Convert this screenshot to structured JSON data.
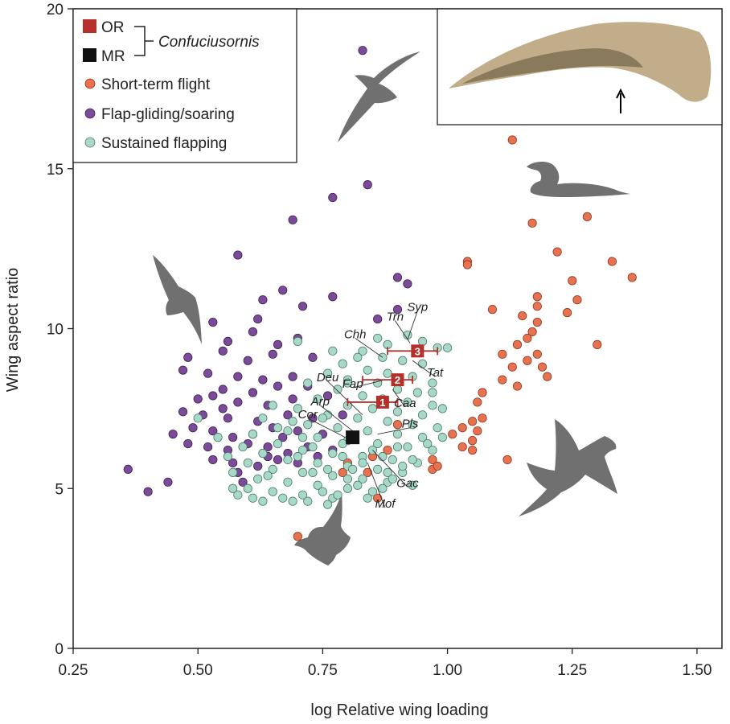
{
  "chart_data": {
    "type": "scatter",
    "xlabel": "log Relative wing loading",
    "ylabel": "Wing aspect ratio",
    "xlim": [
      0.25,
      1.55
    ],
    "ylim": [
      0,
      20
    ],
    "xticks": [
      0.25,
      0.5,
      0.75,
      1.0,
      1.25,
      1.5
    ],
    "xtick_labels": [
      "0.25",
      "0.50",
      "0.75",
      "1.00",
      "1.25",
      "1.50"
    ],
    "yticks": [
      0,
      5,
      10,
      15,
      20
    ],
    "ytick_labels": [
      "0",
      "5",
      "10",
      "15",
      "20"
    ],
    "legend": {
      "position": "top-left",
      "group_label": "Confuciusornis",
      "items": [
        {
          "label": "OR",
          "marker": "square",
          "color": "#b5302a"
        },
        {
          "label": "MR",
          "marker": "square",
          "color": "#111111"
        },
        {
          "label": "Short-term flight",
          "marker": "circle",
          "color": "#e8714f"
        },
        {
          "label": "Flap-gliding/soaring",
          "marker": "circle",
          "color": "#7b4a98"
        },
        {
          "label": "Sustained flapping",
          "marker": "circle",
          "color": "#a8d8c8"
        }
      ]
    },
    "series": [
      {
        "name": "Short-term flight",
        "color": "#e8714f",
        "points": [
          [
            1.13,
            15.9
          ],
          [
            1.17,
            13.3
          ],
          [
            1.28,
            13.5
          ],
          [
            1.22,
            12.4
          ],
          [
            1.04,
            12.1
          ],
          [
            1.04,
            12.0
          ],
          [
            1.33,
            12.1
          ],
          [
            1.37,
            11.6
          ],
          [
            1.25,
            11.5
          ],
          [
            1.18,
            11.0
          ],
          [
            1.26,
            10.9
          ],
          [
            1.18,
            10.7
          ],
          [
            1.09,
            10.6
          ],
          [
            1.24,
            10.5
          ],
          [
            1.18,
            10.2
          ],
          [
            1.15,
            10.4
          ],
          [
            1.17,
            9.9
          ],
          [
            1.16,
            9.7
          ],
          [
            1.3,
            9.5
          ],
          [
            1.14,
            9.5
          ],
          [
            1.11,
            9.2
          ],
          [
            1.18,
            9.2
          ],
          [
            1.16,
            9.0
          ],
          [
            1.19,
            8.8
          ],
          [
            1.13,
            8.8
          ],
          [
            1.2,
            8.5
          ],
          [
            1.11,
            8.4
          ],
          [
            1.14,
            8.2
          ],
          [
            1.07,
            8.0
          ],
          [
            1.06,
            7.7
          ],
          [
            1.07,
            7.2
          ],
          [
            1.05,
            7.1
          ],
          [
            1.03,
            6.9
          ],
          [
            1.06,
            6.8
          ],
          [
            1.01,
            6.7
          ],
          [
            1.05,
            6.5
          ],
          [
            1.03,
            6.3
          ],
          [
            1.05,
            6.2
          ],
          [
            0.97,
            5.9
          ],
          [
            1.12,
            5.9
          ],
          [
            0.97,
            5.6
          ],
          [
            0.85,
            6.0
          ],
          [
            0.84,
            5.5
          ],
          [
            0.86,
            4.7
          ],
          [
            0.8,
            5.8
          ],
          [
            0.79,
            5.5
          ],
          [
            0.7,
            3.5
          ],
          [
            0.98,
            5.7
          ],
          [
            0.88,
            6.2
          ],
          [
            0.9,
            7.0
          ]
        ]
      },
      {
        "name": "Flap-gliding/soaring",
        "color": "#7b4a98",
        "points": [
          [
            0.83,
            18.7
          ],
          [
            0.84,
            14.5
          ],
          [
            0.77,
            14.1
          ],
          [
            0.69,
            13.4
          ],
          [
            0.58,
            12.3
          ],
          [
            0.9,
            11.6
          ],
          [
            0.92,
            11.4
          ],
          [
            0.77,
            11.0
          ],
          [
            0.67,
            11.2
          ],
          [
            0.63,
            10.9
          ],
          [
            0.71,
            10.7
          ],
          [
            0.9,
            10.6
          ],
          [
            0.62,
            10.3
          ],
          [
            0.53,
            10.2
          ],
          [
            0.61,
            9.9
          ],
          [
            0.56,
            9.6
          ],
          [
            0.66,
            9.5
          ],
          [
            0.7,
            9.7
          ],
          [
            0.48,
            9.1
          ],
          [
            0.55,
            9.3
          ],
          [
            0.6,
            9.0
          ],
          [
            0.65,
            9.2
          ],
          [
            0.73,
            9.1
          ],
          [
            0.47,
            8.7
          ],
          [
            0.52,
            8.6
          ],
          [
            0.58,
            8.5
          ],
          [
            0.63,
            8.4
          ],
          [
            0.69,
            8.5
          ],
          [
            0.55,
            8.1
          ],
          [
            0.61,
            8.0
          ],
          [
            0.66,
            8.2
          ],
          [
            0.72,
            8.2
          ],
          [
            0.5,
            7.8
          ],
          [
            0.53,
            7.9
          ],
          [
            0.58,
            7.7
          ],
          [
            0.64,
            7.6
          ],
          [
            0.69,
            7.8
          ],
          [
            0.76,
            7.9
          ],
          [
            0.47,
            7.4
          ],
          [
            0.51,
            7.3
          ],
          [
            0.56,
            7.2
          ],
          [
            0.62,
            7.1
          ],
          [
            0.68,
            7.3
          ],
          [
            0.73,
            7.2
          ],
          [
            0.79,
            7.3
          ],
          [
            0.45,
            6.7
          ],
          [
            0.49,
            6.9
          ],
          [
            0.53,
            6.8
          ],
          [
            0.57,
            6.6
          ],
          [
            0.61,
            6.7
          ],
          [
            0.65,
            6.9
          ],
          [
            0.7,
            6.8
          ],
          [
            0.75,
            6.7
          ],
          [
            0.48,
            6.4
          ],
          [
            0.52,
            6.3
          ],
          [
            0.56,
            6.2
          ],
          [
            0.6,
            6.4
          ],
          [
            0.64,
            6.3
          ],
          [
            0.68,
            6.1
          ],
          [
            0.72,
            6.3
          ],
          [
            0.77,
            6.2
          ],
          [
            0.53,
            5.9
          ],
          [
            0.57,
            5.8
          ],
          [
            0.62,
            5.7
          ],
          [
            0.66,
            5.9
          ],
          [
            0.7,
            5.8
          ],
          [
            0.58,
            5.5
          ],
          [
            0.36,
            5.6
          ],
          [
            0.4,
            4.9
          ],
          [
            0.44,
            5.2
          ],
          [
            0.86,
            10.3
          ],
          [
            0.64,
            6.0
          ],
          [
            0.67,
            6.6
          ],
          [
            0.55,
            7.5
          ],
          [
            0.59,
            5.2
          ],
          [
            0.74,
            6.0
          ]
        ]
      },
      {
        "name": "Sustained flapping",
        "color": "#a8d8c8",
        "points": [
          [
            0.92,
            9.8
          ],
          [
            0.95,
            9.6
          ],
          [
            0.88,
            9.5
          ],
          [
            0.98,
            9.4
          ],
          [
            0.83,
            9.3
          ],
          [
            0.87,
            9.1
          ],
          [
            0.91,
            9.0
          ],
          [
            0.95,
            8.9
          ],
          [
            0.79,
            8.9
          ],
          [
            0.84,
            8.7
          ],
          [
            0.88,
            8.6
          ],
          [
            0.93,
            8.5
          ],
          [
            0.97,
            8.3
          ],
          [
            0.76,
            8.6
          ],
          [
            0.8,
            8.4
          ],
          [
            0.86,
            8.3
          ],
          [
            0.9,
            8.1
          ],
          [
            0.94,
            8.0
          ],
          [
            0.72,
            8.3
          ],
          [
            0.78,
            8.1
          ],
          [
            0.83,
            7.9
          ],
          [
            0.87,
            7.8
          ],
          [
            0.92,
            7.7
          ],
          [
            0.97,
            7.6
          ],
          [
            0.74,
            7.8
          ],
          [
            0.8,
            7.6
          ],
          [
            0.85,
            7.5
          ],
          [
            0.9,
            7.4
          ],
          [
            0.95,
            7.3
          ],
          [
            0.7,
            7.5
          ],
          [
            0.76,
            7.3
          ],
          [
            0.82,
            7.2
          ],
          [
            0.88,
            7.1
          ],
          [
            0.93,
            7.0
          ],
          [
            0.98,
            6.9
          ],
          [
            0.72,
            7.0
          ],
          [
            0.78,
            6.9
          ],
          [
            0.84,
            6.8
          ],
          [
            0.9,
            6.7
          ],
          [
            0.95,
            6.6
          ],
          [
            0.68,
            6.8
          ],
          [
            0.74,
            6.6
          ],
          [
            0.8,
            6.5
          ],
          [
            0.86,
            6.4
          ],
          [
            0.92,
            6.3
          ],
          [
            0.97,
            6.2
          ],
          [
            0.66,
            6.4
          ],
          [
            0.71,
            6.2
          ],
          [
            0.77,
            6.1
          ],
          [
            0.83,
            6.0
          ],
          [
            0.89,
            5.9
          ],
          [
            0.94,
            5.8
          ],
          [
            0.63,
            6.1
          ],
          [
            0.68,
            5.9
          ],
          [
            0.74,
            5.8
          ],
          [
            0.8,
            5.7
          ],
          [
            0.86,
            5.6
          ],
          [
            0.91,
            5.5
          ],
          [
            0.6,
            5.8
          ],
          [
            0.65,
            5.6
          ],
          [
            0.71,
            5.5
          ],
          [
            0.77,
            5.4
          ],
          [
            0.83,
            5.3
          ],
          [
            0.88,
            5.2
          ],
          [
            0.57,
            5.5
          ],
          [
            0.62,
            5.3
          ],
          [
            0.68,
            5.2
          ],
          [
            0.74,
            5.1
          ],
          [
            0.8,
            5.0
          ],
          [
            0.85,
            4.9
          ],
          [
            0.6,
            5.0
          ],
          [
            0.65,
            4.9
          ],
          [
            0.71,
            4.8
          ],
          [
            0.77,
            4.7
          ],
          [
            0.58,
            4.8
          ],
          [
            0.63,
            4.6
          ],
          [
            0.69,
            4.6
          ],
          [
            0.75,
            4.9
          ],
          [
            0.82,
            5.1
          ],
          [
            0.88,
            5.5
          ],
          [
            0.93,
            5.9
          ],
          [
            0.99,
            7.5
          ],
          [
            1.0,
            9.4
          ],
          [
            0.97,
            8.0
          ],
          [
            0.9,
            6.3
          ],
          [
            0.81,
            5.6
          ],
          [
            0.79,
            6.0
          ],
          [
            0.85,
            6.2
          ],
          [
            0.73,
            6.3
          ],
          [
            0.66,
            6.9
          ],
          [
            0.7,
            6.0
          ],
          [
            0.76,
            5.6
          ],
          [
            0.64,
            5.4
          ],
          [
            0.61,
            6.7
          ],
          [
            0.59,
            6.3
          ],
          [
            0.56,
            6.0
          ],
          [
            0.5,
            7.2
          ],
          [
            0.54,
            6.6
          ],
          [
            0.57,
            5.0
          ],
          [
            0.61,
            4.7
          ],
          [
            0.67,
            4.7
          ],
          [
            0.72,
            4.6
          ],
          [
            0.78,
            4.8
          ],
          [
            0.84,
            4.7
          ],
          [
            0.87,
            5.0
          ],
          [
            0.89,
            5.3
          ],
          [
            0.93,
            5.1
          ],
          [
            0.96,
            6.4
          ],
          [
            0.99,
            6.6
          ],
          [
            0.82,
            9.1
          ],
          [
            0.86,
            9.7
          ],
          [
            0.8,
            8.3
          ],
          [
            0.75,
            7.2
          ],
          [
            0.71,
            6.6
          ],
          [
            0.69,
            7.1
          ],
          [
            0.65,
            7.6
          ],
          [
            0.63,
            7.2
          ],
          [
            0.76,
            4.5
          ],
          [
            0.8,
            5.3
          ],
          [
            0.73,
            5.5
          ],
          [
            0.79,
            6.4
          ],
          [
            0.83,
            5.8
          ],
          [
            0.87,
            6.0
          ],
          [
            0.91,
            5.7
          ],
          [
            0.77,
            9.3
          ],
          [
            0.7,
            9.6
          ]
        ]
      }
    ],
    "confuciusornis": [
      {
        "id": "OR-1",
        "label": "1",
        "x": 0.87,
        "y": 7.7,
        "xerr": [
          0.8,
          0.9
        ],
        "color": "#b5302a"
      },
      {
        "id": "OR-2",
        "label": "2",
        "x": 0.9,
        "y": 8.4,
        "xerr": [
          0.83,
          0.93
        ],
        "color": "#b5302a"
      },
      {
        "id": "OR-3",
        "label": "3",
        "x": 0.94,
        "y": 9.3,
        "xerr": [
          0.88,
          0.98
        ],
        "color": "#b5302a"
      },
      {
        "id": "MR",
        "label": "",
        "x": 0.81,
        "y": 6.6,
        "color": "#111111"
      }
    ],
    "annotations": [
      {
        "text": "Syp",
        "x": 0.94,
        "y": 10.55
      },
      {
        "text": "Trn",
        "x": 0.895,
        "y": 10.25
      },
      {
        "text": "Chh",
        "x": 0.815,
        "y": 9.7
      },
      {
        "text": "Tat",
        "x": 0.975,
        "y": 8.5
      },
      {
        "text": "Fap",
        "x": 0.81,
        "y": 8.15
      },
      {
        "text": "Deu",
        "x": 0.76,
        "y": 8.35
      },
      {
        "text": "Caa",
        "x": 0.915,
        "y": 7.55
      },
      {
        "text": "Arp",
        "x": 0.745,
        "y": 7.6
      },
      {
        "text": "Pls",
        "x": 0.925,
        "y": 6.9
      },
      {
        "text": "Cor",
        "x": 0.72,
        "y": 7.2
      },
      {
        "text": "Gac",
        "x": 0.92,
        "y": 5.05
      },
      {
        "text": "Mof",
        "x": 0.875,
        "y": 4.4
      }
    ]
  }
}
